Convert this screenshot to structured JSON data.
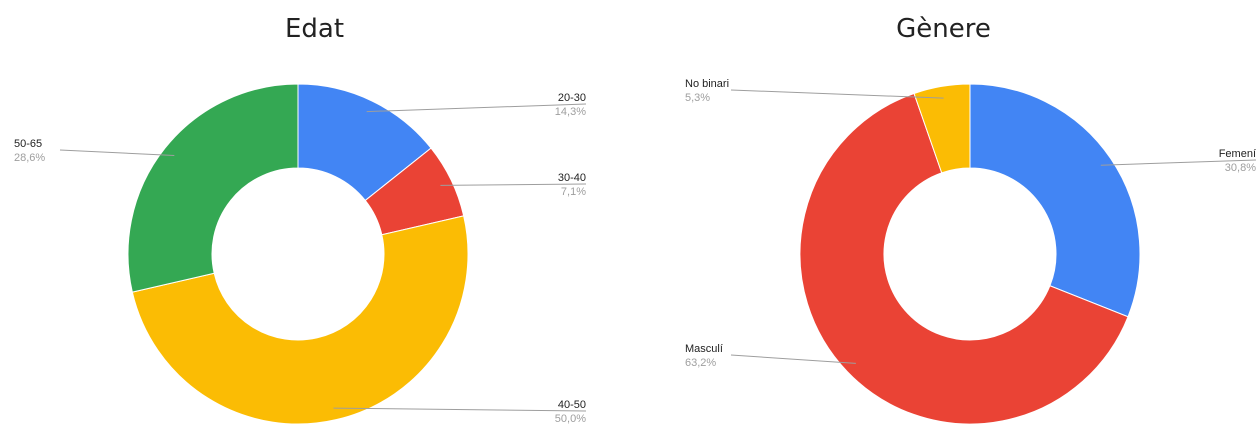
{
  "chart_data": [
    {
      "type": "pie",
      "donut": true,
      "title": "Edat",
      "categories": [
        "20-30",
        "30-40",
        "40-50",
        "50-65"
      ],
      "values": [
        14.3,
        7.1,
        50.0,
        28.6
      ],
      "labels": [
        "14,3%",
        "7,1%",
        "50,0%",
        "28,6%"
      ],
      "colors": [
        "#4285F4",
        "#EA4335",
        "#FBBC04",
        "#34A853"
      ],
      "legend": "none"
    },
    {
      "type": "pie",
      "donut": true,
      "title": "Gènere",
      "categories": [
        "Femení",
        "Masculí",
        "No binari"
      ],
      "values": [
        30.8,
        63.2,
        5.3
      ],
      "labels": [
        "30,8%",
        "63,2%",
        "5,3%"
      ],
      "colors": [
        "#4285F4",
        "#EA4335",
        "#FBBC04"
      ],
      "legend": "none"
    }
  ]
}
